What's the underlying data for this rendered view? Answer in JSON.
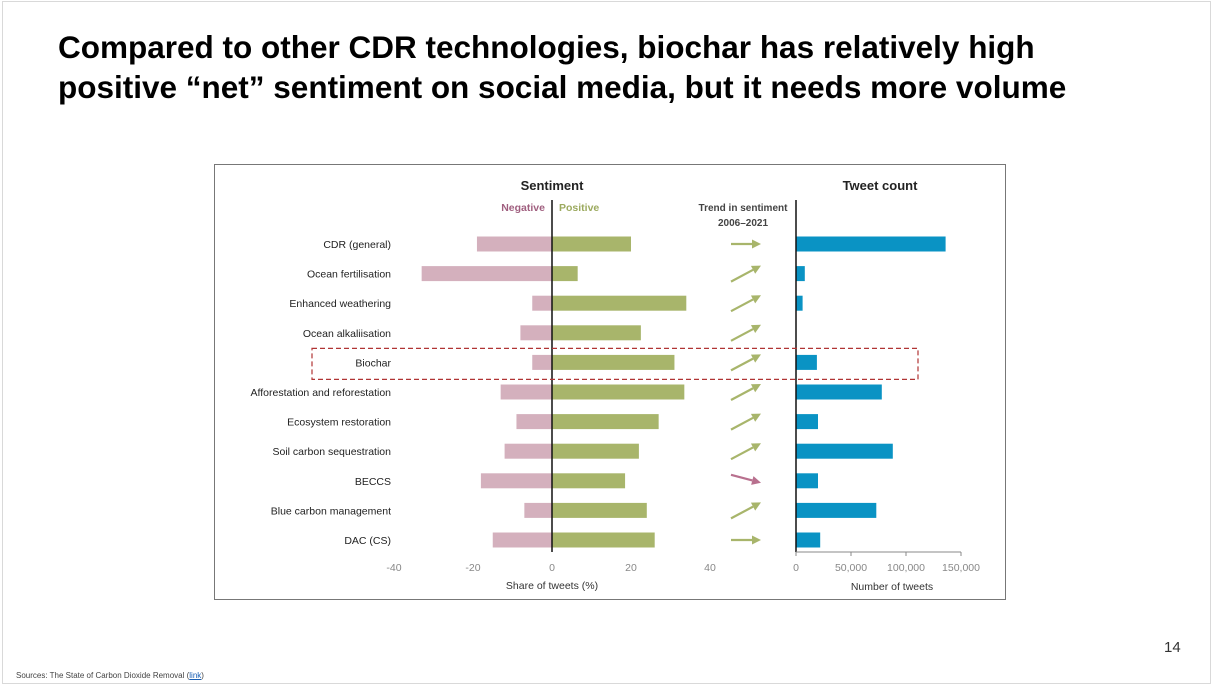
{
  "slide": {
    "title_line1": "Compared to other CDR technologies, biochar has relatively high",
    "title_line2": "positive “net” sentiment on social media, but it needs more volume",
    "page_number": "14",
    "source_text": "Sources: The State of Carbon Dioxide Removal (",
    "source_link": "link",
    "source_close": ")"
  },
  "colors": {
    "negative": "#d4b0bd",
    "negative_label": "#a05f7f",
    "positive": "#a8b56b",
    "positive_label": "#9caa5f",
    "tweet": "#0a93c4",
    "highlight": "#b03434",
    "arrow_up": "#a8b56b",
    "arrow_down": "#b8708e"
  },
  "chart_data": {
    "type": "bar",
    "categories": [
      "CDR (general)",
      "Ocean fertilisation",
      "Enhanced weathering",
      "Ocean alkaliisation",
      "Biochar",
      "Afforestation and reforestation",
      "Ecosystem restoration",
      "Soil carbon sequestration",
      "BECCS",
      "Blue carbon management",
      "DAC (CS)"
    ],
    "highlighted_category": "Biochar",
    "sentiment": {
      "title": "Sentiment",
      "negative_label": "Negative",
      "positive_label": "Positive",
      "xlabel": "Share of tweets (%)",
      "xlim": [
        -40,
        40
      ],
      "xticks": [
        "-40",
        "-20",
        "0",
        "20",
        "40"
      ],
      "xtick_values": [
        -40,
        -20,
        0,
        20,
        40
      ],
      "series": [
        {
          "name": "Negative",
          "values": [
            -19,
            -33,
            -5,
            -8,
            -5,
            -13,
            -9,
            -12,
            -18,
            -7,
            -15
          ]
        },
        {
          "name": "Positive",
          "values": [
            20,
            6.5,
            34,
            22.5,
            31,
            33.5,
            27,
            22,
            18.5,
            24,
            26
          ]
        }
      ]
    },
    "trend": {
      "title_line1": "Trend in sentiment",
      "title_line2": "2006–2021",
      "directions": [
        "flat",
        "up",
        "up",
        "up",
        "up",
        "up",
        "up",
        "up",
        "down",
        "up",
        "flat"
      ]
    },
    "tweet_count": {
      "title": "Tweet count",
      "xlabel": "Number of tweets",
      "xlim": [
        0,
        150000
      ],
      "xticks": [
        "0",
        "50,000",
        "100,000",
        "150,000"
      ],
      "xtick_values": [
        0,
        50000,
        100000,
        150000
      ],
      "values": [
        136000,
        8000,
        6000,
        0,
        19000,
        78000,
        20000,
        88000,
        20000,
        73000,
        22000
      ]
    }
  }
}
